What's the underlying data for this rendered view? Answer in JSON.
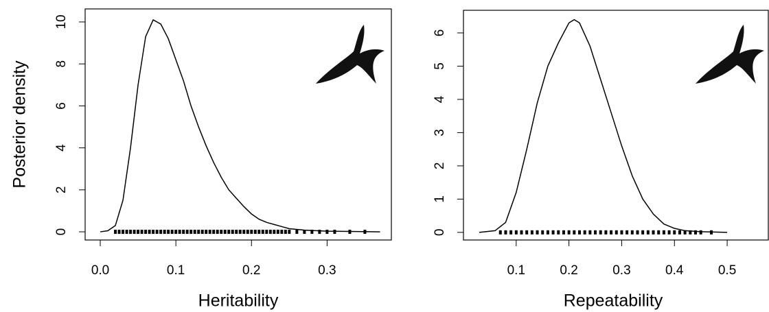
{
  "chart_data": [
    {
      "type": "line",
      "xlabel": "Heritability",
      "ylabel": "Posterior density",
      "x": [
        0.0,
        0.01,
        0.02,
        0.03,
        0.04,
        0.05,
        0.06,
        0.07,
        0.08,
        0.09,
        0.1,
        0.11,
        0.12,
        0.13,
        0.14,
        0.15,
        0.16,
        0.17,
        0.18,
        0.19,
        0.2,
        0.21,
        0.22,
        0.23,
        0.24,
        0.25,
        0.27,
        0.3,
        0.33,
        0.37
      ],
      "series": [
        {
          "color": "#000000",
          "values": [
            0,
            0.05,
            0.3,
            1.5,
            4,
            7,
            9.3,
            10.1,
            9.9,
            9.2,
            8.2,
            7.2,
            6.0,
            5.0,
            4.1,
            3.3,
            2.6,
            2.0,
            1.6,
            1.2,
            0.85,
            0.6,
            0.45,
            0.35,
            0.25,
            0.15,
            0.08,
            0.03,
            0.02,
            0
          ]
        }
      ],
      "rug": [
        0.02,
        0.025,
        0.03,
        0.035,
        0.04,
        0.045,
        0.05,
        0.055,
        0.06,
        0.065,
        0.07,
        0.075,
        0.08,
        0.085,
        0.09,
        0.095,
        0.1,
        0.105,
        0.11,
        0.115,
        0.12,
        0.125,
        0.13,
        0.135,
        0.14,
        0.145,
        0.15,
        0.155,
        0.16,
        0.165,
        0.17,
        0.175,
        0.18,
        0.185,
        0.19,
        0.195,
        0.2,
        0.205,
        0.21,
        0.215,
        0.22,
        0.225,
        0.23,
        0.235,
        0.24,
        0.245,
        0.25,
        0.26,
        0.27,
        0.28,
        0.29,
        0.3,
        0.31,
        0.33,
        0.35
      ],
      "xlim": [
        -0.02,
        0.385
      ],
      "ylim": [
        -0.39,
        10.62
      ],
      "xticks": [
        {
          "value": 0,
          "label": "0.0"
        },
        0.1,
        0.2,
        0.3
      ],
      "yticks": [
        0,
        2,
        4,
        6,
        8,
        10
      ]
    },
    {
      "type": "line",
      "xlabel": "Repeatability",
      "x": [
        0.03,
        0.06,
        0.08,
        0.1,
        0.12,
        0.14,
        0.16,
        0.18,
        0.2,
        0.21,
        0.22,
        0.24,
        0.26,
        0.28,
        0.3,
        0.32,
        0.34,
        0.36,
        0.38,
        0.4,
        0.42,
        0.45,
        0.5
      ],
      "series": [
        {
          "color": "#000000",
          "values": [
            0,
            0.05,
            0.3,
            1.2,
            2.5,
            3.9,
            5.0,
            5.7,
            6.3,
            6.4,
            6.3,
            5.6,
            4.6,
            3.6,
            2.6,
            1.7,
            1.0,
            0.55,
            0.25,
            0.12,
            0.05,
            0.02,
            0
          ]
        }
      ],
      "rug": [
        0.07,
        0.08,
        0.09,
        0.1,
        0.11,
        0.12,
        0.13,
        0.14,
        0.15,
        0.16,
        0.17,
        0.18,
        0.19,
        0.2,
        0.21,
        0.22,
        0.23,
        0.24,
        0.25,
        0.26,
        0.27,
        0.28,
        0.29,
        0.3,
        0.31,
        0.32,
        0.33,
        0.34,
        0.35,
        0.36,
        0.37,
        0.38,
        0.39,
        0.4,
        0.41,
        0.42,
        0.43,
        0.44,
        0.45,
        0.47
      ],
      "xlim": [
        0.0,
        0.578
      ],
      "ylim": [
        -0.23,
        6.68
      ],
      "xticks": [
        0.1,
        0.2,
        0.3,
        0.4,
        0.5
      ],
      "yticks": [
        0,
        1,
        2,
        3,
        4,
        5,
        6
      ]
    }
  ]
}
